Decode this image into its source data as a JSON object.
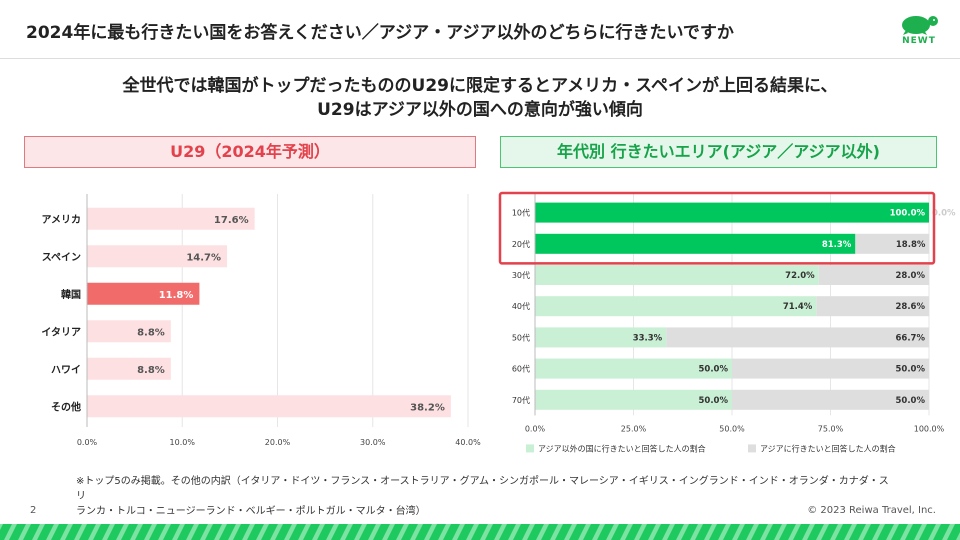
{
  "header": {
    "title": "2024年に最も行きたい国をお答えください／アジア・アジア以外のどちらに行きたいですか",
    "logo_text": "NEWT",
    "logo_icon": "turtle-icon"
  },
  "headline": {
    "line1": "全世代では韓国がトップだったもののU29に限定するとアメリカ・スペインが上回る結果に、",
    "line2": "U29はアジア以外の国への意向が強い傾向"
  },
  "left_box": {
    "label": "U29（2024年予測）"
  },
  "right_box": {
    "label": "年代別 行きたいエリア(アジア／アジア以外)"
  },
  "colors": {
    "pink_bar": "#fde0e2",
    "highlight_bar": "#f26b6b",
    "green_bar": "#00c65e",
    "light_green_bar": "#c9efd4",
    "gray_bar": "#dedede",
    "highlight_frame": "#e3414b"
  },
  "chart_data": [
    {
      "type": "bar",
      "orientation": "horizontal",
      "title": "U29（2024年予測）",
      "categories": [
        "アメリカ",
        "スペイン",
        "韓国",
        "イタリア",
        "ハワイ",
        "その他"
      ],
      "values": [
        17.6,
        14.7,
        11.8,
        8.8,
        8.8,
        38.2
      ],
      "value_labels": [
        "17.6%",
        "14.7%",
        "11.8%",
        "8.8%",
        "8.8%",
        "38.2%"
      ],
      "highlight": "韓国",
      "xlim": [
        0,
        40
      ],
      "xticks": [
        "0.0%",
        "10.0%",
        "20.0%",
        "30.0%",
        "40.0%"
      ],
      "xlabel": "",
      "ylabel": ""
    },
    {
      "type": "bar",
      "orientation": "horizontal",
      "stacked": true,
      "title": "年代別 行きたいエリア(アジア／アジア以外)",
      "categories": [
        "10代",
        "20代",
        "30代",
        "40代",
        "50代",
        "60代",
        "70代"
      ],
      "series": [
        {
          "name": "アジア以外の国に行きたいと回答した人の割合",
          "values": [
            100.0,
            81.3,
            72.0,
            71.4,
            33.3,
            50.0,
            50.0
          ],
          "labels": [
            "100.0%",
            "81.3%",
            "72.0%",
            "71.4%",
            "33.3%",
            "50.0%",
            "50.0%"
          ]
        },
        {
          "name": "アジアに行きたいと回答した人の割合",
          "values": [
            0.0,
            18.8,
            28.0,
            28.6,
            66.7,
            50.0,
            50.0
          ],
          "labels": [
            "0.0%",
            "18.8%",
            "28.0%",
            "28.6%",
            "66.7%",
            "50.0%",
            "50.0%"
          ]
        }
      ],
      "highlight_rows": [
        "10代",
        "20代"
      ],
      "xlim": [
        0,
        100
      ],
      "xticks": [
        "0.0%",
        "25.0%",
        "50.0%",
        "75.0%",
        "100.0%"
      ],
      "legend_position": "bottom"
    }
  ],
  "footnote": {
    "line1": "※トップ5のみ掲載。その他の内訳（イタリア・ドイツ・フランス・オーストラリア・グアム・シンガポール・マレーシア・イギリス・イングランド・インド・オランダ・カナダ・スリ",
    "line2": "ランカ・トルコ・ニュージーランド・ベルギー・ポルトガル・マルタ・台湾）"
  },
  "footer": {
    "page_number": "2",
    "copyright": "© 2023 Reiwa Travel, Inc."
  }
}
